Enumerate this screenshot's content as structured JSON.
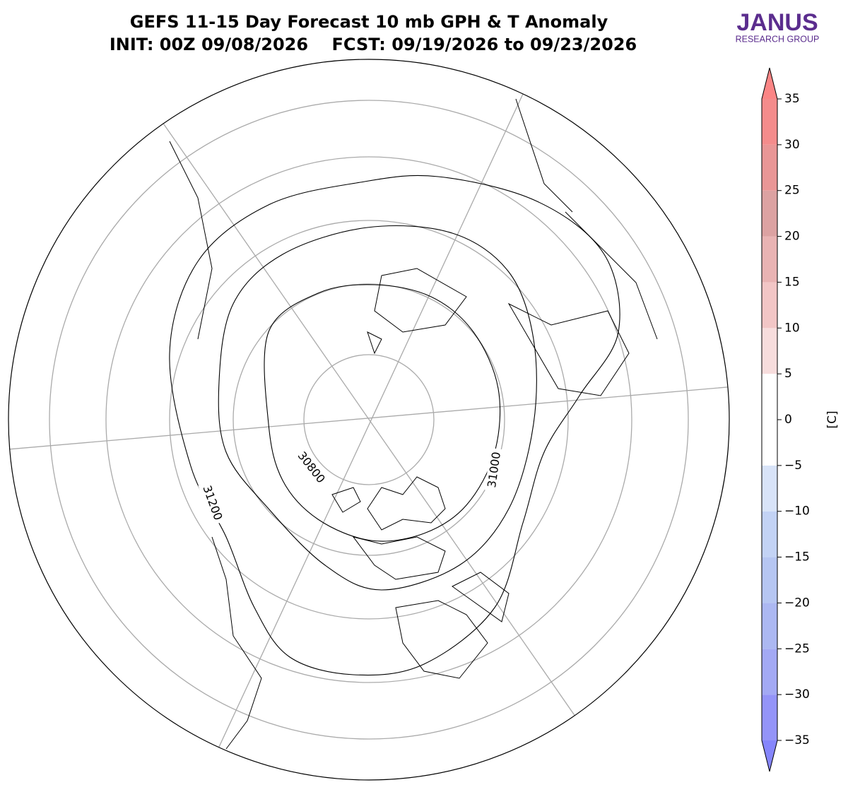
{
  "header": {
    "title": "GEFS 11-15 Day Forecast 10 mb GPH & T Anomaly",
    "subtitle": "INIT: 00Z 09/08/2026    FCST: 09/19/2026 to 09/23/2026"
  },
  "logo": {
    "name": "JANUS",
    "tagline": "RESEARCH GROUP"
  },
  "contours": [
    {
      "value": 30800
    },
    {
      "value": 31000
    },
    {
      "value": 31200
    }
  ],
  "colorbar": {
    "label": "[C]",
    "lim": [
      -35,
      35
    ],
    "ticks": [
      {
        "value": -35,
        "label": "−35"
      },
      {
        "value": -30,
        "label": "−30"
      },
      {
        "value": -25,
        "label": "−25"
      },
      {
        "value": -20,
        "label": "−20"
      },
      {
        "value": -15,
        "label": "−15"
      },
      {
        "value": -10,
        "label": "−10"
      },
      {
        "value": -5,
        "label": "−5"
      },
      0,
      5,
      10,
      15,
      20,
      25,
      30,
      35
    ],
    "colors": [
      "#9494f8",
      "#a3a9f4",
      "#acb8f2",
      "#b6c6f2",
      "#c3d3f5",
      "#d8e3f8",
      "#ffffff",
      "#ffffff",
      "#f7dddd",
      "#f2c6c6",
      "#e9b3b3",
      "#dca2a2",
      "#e99696",
      "#f48c8c"
    ],
    "under_color": "#8585fb",
    "over_color": "#fb8585"
  }
}
